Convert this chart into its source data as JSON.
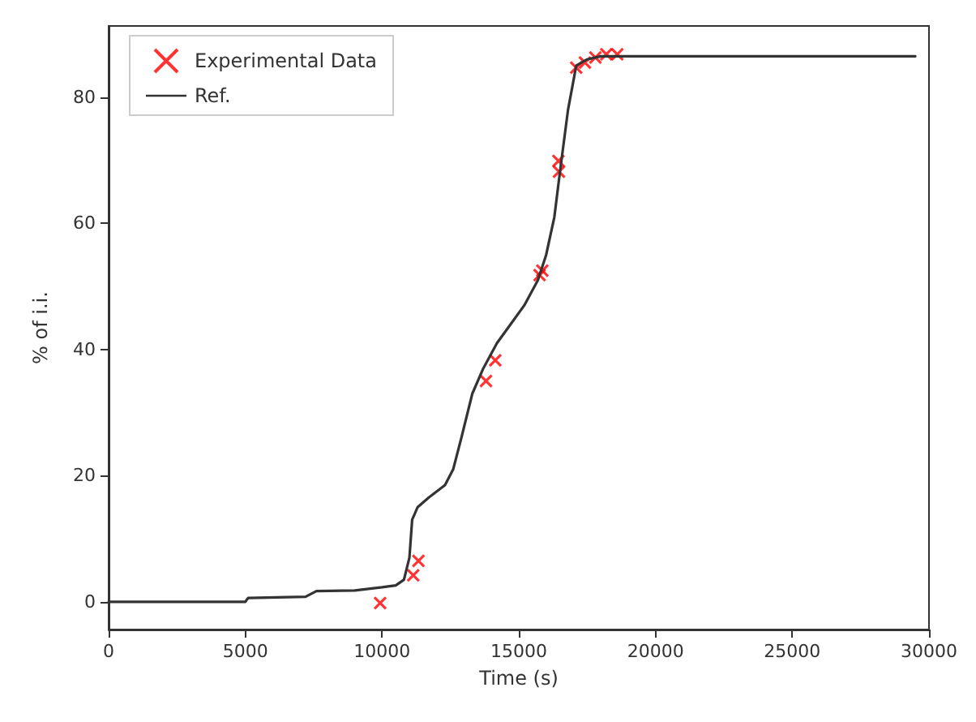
{
  "chart_data": {
    "type": "line",
    "xlabel": "Time (s)",
    "ylabel": "% of i.i.",
    "xlim": [
      0,
      30000
    ],
    "xticks": [
      0,
      5000,
      10000,
      15000,
      20000,
      25000,
      30000
    ],
    "ylim": [
      -4.4,
      91.3
    ],
    "yticks": [
      0,
      20,
      40,
      60,
      80
    ],
    "grid": false,
    "legend": "top left",
    "series": [
      {
        "name": "Experimental Data",
        "type": "scatter",
        "marker": "cross",
        "color": "#ff0000",
        "x": [
          9930,
          11140,
          11330,
          13800,
          14140,
          15760,
          15860,
          16450,
          16470,
          17100,
          17420,
          17800,
          18200,
          18600
        ],
        "values": [
          -0.2,
          4.2,
          6.5,
          35,
          38.3,
          51.8,
          52.5,
          69.9,
          68.2,
          84.7,
          85.5,
          86.3,
          86.8,
          86.8
        ]
      },
      {
        "name": "Ref.",
        "marker": "none",
        "color": "#333333",
        "x": [
          0,
          5000,
          5100,
          7200,
          7600,
          9000,
          10000,
          10500,
          10800,
          11000,
          11100,
          11300,
          11700,
          12300,
          12600,
          12900,
          13300,
          13700,
          14200,
          14700,
          15200,
          15700,
          16000,
          16300,
          16500,
          16800,
          17100,
          17500,
          18000,
          29500
        ],
        "values": [
          0,
          0,
          0.6,
          0.8,
          1.7,
          1.8,
          2.3,
          2.6,
          3.5,
          7,
          13,
          15,
          16.5,
          18.5,
          21,
          26,
          33,
          37,
          41,
          44,
          47,
          51,
          55,
          61,
          68,
          78,
          85,
          86,
          86.5,
          86.5
        ]
      }
    ]
  }
}
